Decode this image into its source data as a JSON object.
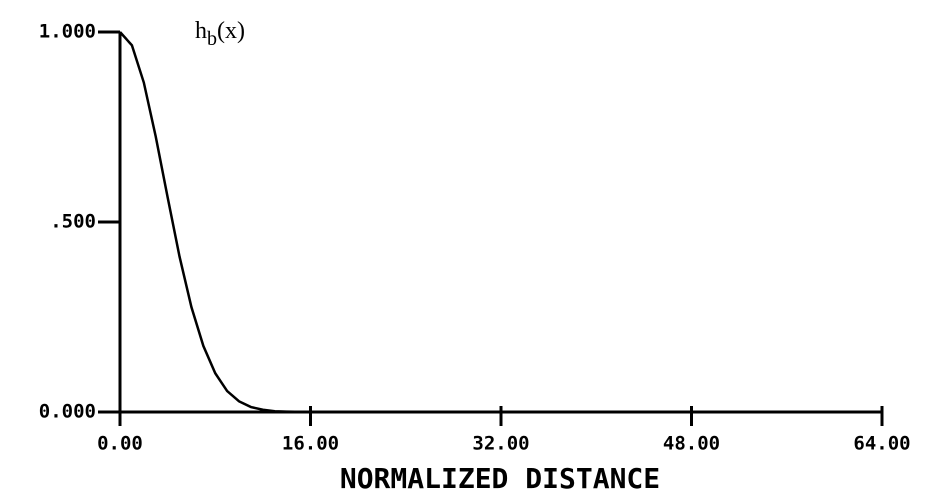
{
  "chart_data": {
    "type": "line",
    "annotation": {
      "base": "h",
      "subscript": "b",
      "suffix": "(x)"
    },
    "x_label": "NORMALIZED DISTANCE",
    "x": [
      0,
      1,
      2,
      3,
      4,
      5,
      6,
      7,
      8,
      9,
      10,
      11,
      12,
      13,
      14,
      16,
      24,
      32,
      40,
      48,
      56,
      64
    ],
    "series": [
      {
        "color": "#000000",
        "values": [
          1,
          0.965,
          0.867,
          0.725,
          0.565,
          0.409,
          0.276,
          0.174,
          0.102,
          0.055,
          0.028,
          0.013,
          0.006,
          0.002,
          0.001,
          0,
          0,
          0,
          0,
          0,
          0,
          0
        ]
      }
    ],
    "xlim": [
      0,
      64
    ],
    "ylim": [
      0,
      1
    ],
    "xticks": [
      {
        "value": 0,
        "label": "0.00"
      },
      {
        "value": 16,
        "label": "16.00"
      },
      {
        "value": 32,
        "label": "32.00"
      },
      {
        "value": 48,
        "label": "48.00"
      },
      {
        "value": 64,
        "label": "64.00"
      }
    ],
    "yticks": [
      {
        "value": 0,
        "label": "0.000"
      },
      {
        "value": 0.5,
        "label": ".500"
      },
      {
        "value": 1,
        "label": "1.000"
      }
    ]
  }
}
